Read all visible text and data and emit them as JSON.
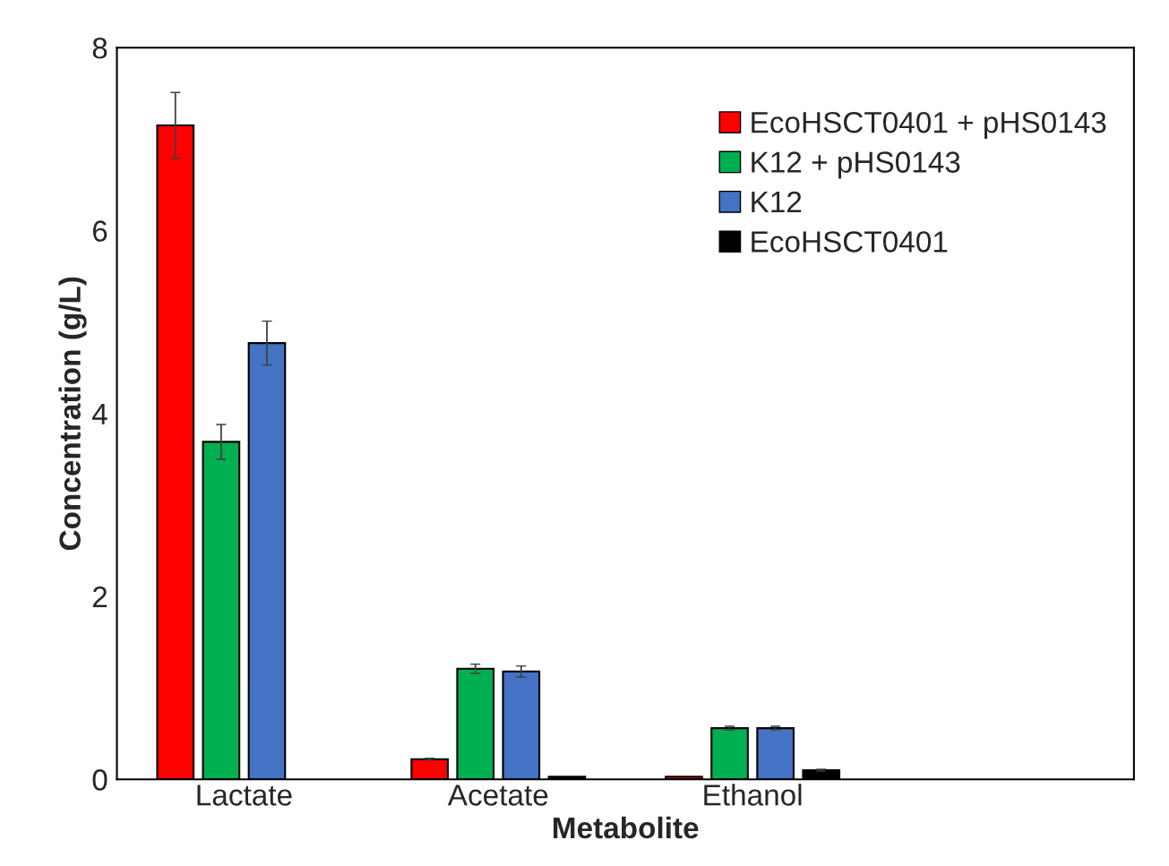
{
  "chart_data": {
    "type": "bar",
    "xlabel": "Metabolite",
    "ylabel": "Concentration (g/L)",
    "categories": [
      "Lactate",
      "Acetate",
      "Ethanol",
      null
    ],
    "series": [
      {
        "name": "EcoHSCT0401 + pHS0143",
        "color": "#ff0000",
        "values": [
          7.15,
          0.22,
          0.03,
          null
        ],
        "errors": [
          0.36,
          0.01,
          null,
          null
        ]
      },
      {
        "name": "K12 + pHS0143",
        "color": "#00b050",
        "values": [
          3.69,
          1.21,
          0.56,
          null
        ],
        "errors": [
          0.19,
          0.05,
          0.02,
          null
        ]
      },
      {
        "name": "K12",
        "color": "#4472c4",
        "values": [
          4.77,
          1.18,
          0.56,
          null
        ],
        "errors": [
          0.24,
          0.06,
          0.02,
          null
        ]
      },
      {
        "name": "EcoHSCT0401",
        "color": "#000000",
        "values": [
          null,
          0.03,
          0.1,
          null
        ],
        "errors": [
          null,
          null,
          0.01,
          null
        ]
      }
    ],
    "ylim": [
      0,
      8
    ],
    "yticks": [
      0,
      2,
      4,
      6,
      8
    ],
    "grid": false,
    "legend": "top right"
  }
}
